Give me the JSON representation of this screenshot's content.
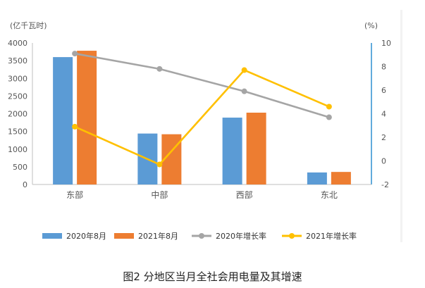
{
  "figure": {
    "caption": "图2 分地区当月全社会用电量及其增速"
  },
  "chart_data": {
    "type": "bar",
    "categories": [
      "东部",
      "中部",
      "西部",
      "东北"
    ],
    "series": [
      {
        "name": "2020年8月",
        "kind": "bar",
        "axis": "left",
        "color": "#5b9bd5",
        "values": [
          3600,
          1440,
          1890,
          340
        ]
      },
      {
        "name": "2021年8月",
        "kind": "bar",
        "axis": "left",
        "color": "#ed7d31",
        "values": [
          3780,
          1420,
          2030,
          355
        ]
      },
      {
        "name": "2020年增长率",
        "kind": "line",
        "axis": "right",
        "color": "#a5a5a5",
        "values": [
          9.1,
          7.8,
          5.9,
          3.7
        ]
      },
      {
        "name": "2021年增长率",
        "kind": "line",
        "axis": "right",
        "color": "#ffc000",
        "values": [
          2.9,
          -0.3,
          7.7,
          4.6
        ]
      }
    ],
    "y_left": {
      "label": "(亿千瓦时)",
      "min": 0,
      "max": 4000,
      "ticks": [
        0,
        500,
        1000,
        1500,
        2000,
        2500,
        3000,
        3500,
        4000
      ]
    },
    "y_right": {
      "label": "(%)",
      "min": -2,
      "max": 10,
      "ticks": [
        -2,
        0,
        2,
        4,
        6,
        8,
        10
      ]
    },
    "grid": false,
    "legend_position": "bottom"
  }
}
